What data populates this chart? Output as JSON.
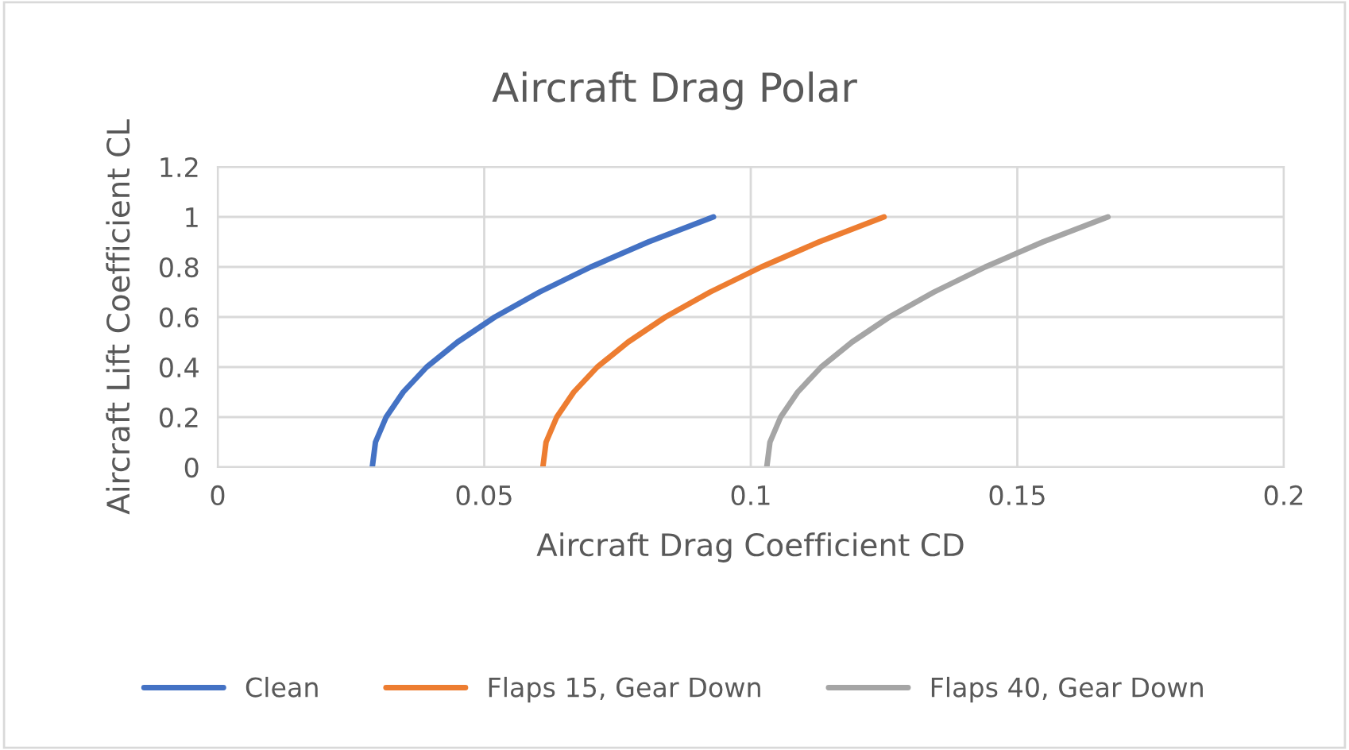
{
  "chart_data": {
    "type": "line",
    "title": "Aircraft Drag Polar",
    "xlabel": "Aircraft Drag Coefficient CD",
    "ylabel": "Aircraft Lift Coefficient CL",
    "series": [
      {
        "name": "Clean",
        "color": "#4472c4",
        "x": [
          0.029,
          0.0296,
          0.0316,
          0.0348,
          0.0392,
          0.045,
          0.052,
          0.0604,
          0.07,
          0.0808,
          0.093
        ],
        "values": [
          0,
          0.1,
          0.2,
          0.3,
          0.4,
          0.5,
          0.6,
          0.7,
          0.8,
          0.9,
          1
        ]
      },
      {
        "name": "Flaps 15, Gear Down",
        "color": "#ed7d31",
        "x": [
          0.061,
          0.0616,
          0.0636,
          0.0668,
          0.0712,
          0.077,
          0.084,
          0.0924,
          0.102,
          0.1128,
          0.125
        ],
        "values": [
          0,
          0.1,
          0.2,
          0.3,
          0.4,
          0.5,
          0.6,
          0.7,
          0.8,
          0.9,
          1
        ]
      },
      {
        "name": "Flaps 40, Gear Down",
        "color": "#a5a5a5",
        "x": [
          0.103,
          0.1036,
          0.1056,
          0.1088,
          0.1132,
          0.119,
          0.126,
          0.1344,
          0.144,
          0.1548,
          0.167
        ],
        "values": [
          0,
          0.1,
          0.2,
          0.3,
          0.4,
          0.5,
          0.6,
          0.7,
          0.8,
          0.9,
          1
        ]
      }
    ],
    "xlim": [
      0,
      0.2
    ],
    "xticks": [
      0,
      0.05,
      0.1,
      0.15,
      0.2
    ],
    "ylim": [
      0,
      1.2
    ],
    "yticks": [
      0,
      0.2,
      0.4,
      0.6,
      0.8,
      1,
      1.2
    ],
    "grid": true,
    "legend": "bottom",
    "marker": "none",
    "line_style": "solid"
  }
}
